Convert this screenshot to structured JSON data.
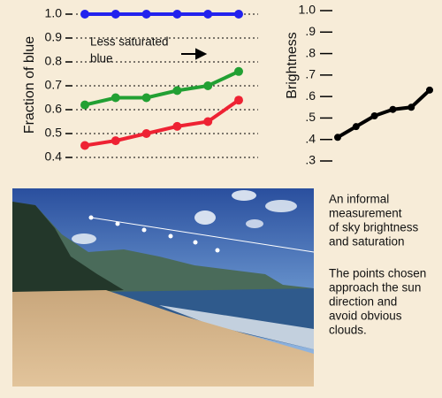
{
  "chart_data": [
    {
      "type": "line",
      "ylabel": "Fraction of blue",
      "categories": [
        null,
        null,
        null,
        null,
        null,
        null
      ],
      "ylim": [
        0.4,
        1.0
      ],
      "yticks": [
        {
          "value": 1,
          "label": "1.0"
        },
        0.9,
        0.8,
        0.7,
        0.6,
        0.5,
        0.4
      ],
      "grid": true,
      "annotation_lines": [
        "Less saturated",
        "blue"
      ],
      "series": [
        {
          "color": "#2222ee",
          "values": [
            1.0,
            1.0,
            1.0,
            1.0,
            1.0,
            1.0
          ]
        },
        {
          "color": "#22a033",
          "values": [
            0.62,
            0.65,
            0.65,
            0.68,
            0.7,
            0.76
          ]
        },
        {
          "color": "#ee2233",
          "values": [
            0.45,
            0.47,
            0.5,
            0.53,
            0.55,
            0.64
          ]
        }
      ]
    },
    {
      "type": "line",
      "ylabel": "Brightness",
      "categories": [
        null,
        null,
        null,
        null,
        null,
        null
      ],
      "ylim": [
        0.3,
        1.0
      ],
      "yticks": [
        {
          "value": 1,
          "label": "1.0"
        },
        {
          "value": 0.9,
          "label": ".9"
        },
        {
          "value": 0.8,
          "label": ".8"
        },
        {
          "value": 0.7,
          "label": ".7"
        },
        {
          "value": 0.6,
          "label": ".6"
        },
        {
          "value": 0.5,
          "label": ".5"
        },
        {
          "value": 0.4,
          "label": ".4"
        },
        {
          "value": 0.3,
          "label": ".3"
        }
      ],
      "grid": false,
      "series": [
        {
          "color": "#000000",
          "values": [
            0.41,
            0.46,
            0.51,
            0.54,
            0.55,
            0.63
          ]
        }
      ]
    }
  ],
  "caption": {
    "first": [
      "An informal",
      "measurement",
      "of sky brightness",
      "and saturation"
    ],
    "second": [
      "The points chosen",
      "approach the sun",
      "direction and",
      "avoid obvious",
      "clouds."
    ]
  }
}
